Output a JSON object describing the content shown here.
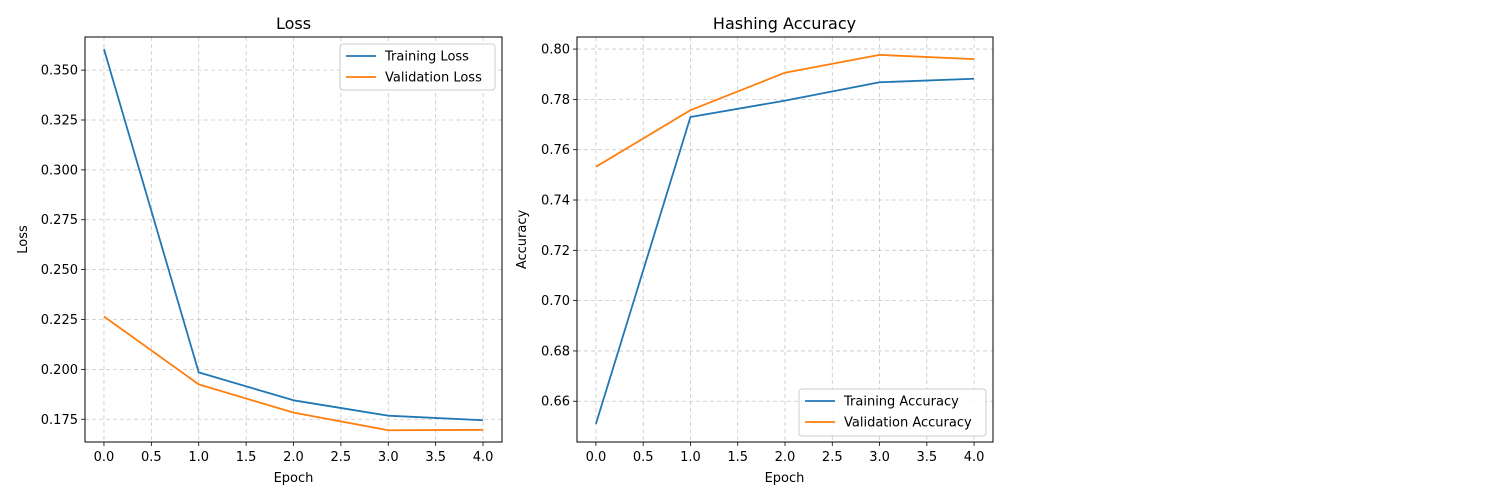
{
  "chart_data": [
    {
      "type": "line",
      "title": "Loss",
      "xlabel": "Epoch",
      "ylabel": "Loss",
      "x": [
        0,
        1,
        2,
        3,
        4
      ],
      "xlim": [
        -0.2,
        4.2
      ],
      "ylim": [
        0.1636,
        0.3666
      ],
      "xticks": [
        0.0,
        0.5,
        1.0,
        1.5,
        2.0,
        2.5,
        3.0,
        3.5,
        4.0
      ],
      "xtick_labels": [
        "0.0",
        "0.5",
        "1.0",
        "1.5",
        "2.0",
        "2.5",
        "3.0",
        "3.5",
        "4.0"
      ],
      "yticks": [
        0.175,
        0.2,
        0.225,
        0.25,
        0.275,
        0.3,
        0.325,
        0.35
      ],
      "ytick_labels": [
        "0.175",
        "0.200",
        "0.225",
        "0.250",
        "0.275",
        "0.300",
        "0.325",
        "0.350"
      ],
      "grid": true,
      "legend": "upper right",
      "series": [
        {
          "name": "Training Loss",
          "color": "#1f77b4",
          "values": [
            0.3605,
            0.1985,
            0.1845,
            0.1768,
            0.1745
          ]
        },
        {
          "name": "Validation Loss",
          "color": "#ff7f0e",
          "values": [
            0.2265,
            0.1925,
            0.1783,
            0.1695,
            0.1697
          ]
        }
      ]
    },
    {
      "type": "line",
      "title": "Hashing Accuracy",
      "xlabel": "Epoch",
      "ylabel": "Accuracy",
      "x": [
        0,
        1,
        2,
        3,
        4
      ],
      "xlim": [
        -0.2,
        4.2
      ],
      "ylim": [
        0.6438,
        0.8048
      ],
      "xticks": [
        0.0,
        0.5,
        1.0,
        1.5,
        2.0,
        2.5,
        3.0,
        3.5,
        4.0
      ],
      "xtick_labels": [
        "0.0",
        "0.5",
        "1.0",
        "1.5",
        "2.0",
        "2.5",
        "3.0",
        "3.5",
        "4.0"
      ],
      "yticks": [
        0.66,
        0.68,
        0.7,
        0.72,
        0.74,
        0.76,
        0.78,
        0.8
      ],
      "ytick_labels": [
        "0.66",
        "0.68",
        "0.70",
        "0.72",
        "0.74",
        "0.76",
        "0.78",
        "0.80"
      ],
      "grid": true,
      "legend": "lower right",
      "series": [
        {
          "name": "Training Accuracy",
          "color": "#1f77b4",
          "values": [
            0.651,
            0.773,
            0.7795,
            0.7868,
            0.7882
          ]
        },
        {
          "name": "Validation Accuracy",
          "color": "#ff7f0e",
          "values": [
            0.7532,
            0.7757,
            0.7906,
            0.7977,
            0.796
          ]
        }
      ]
    }
  ]
}
